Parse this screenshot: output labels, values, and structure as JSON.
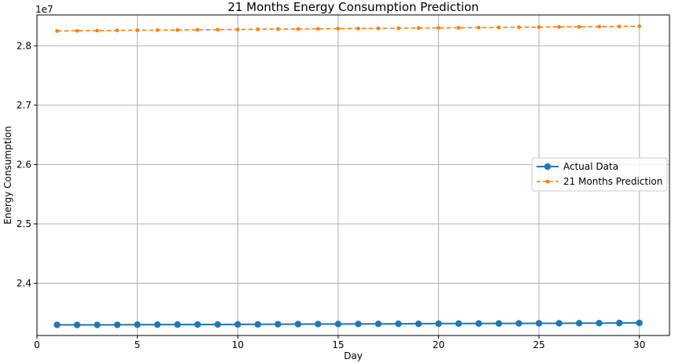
{
  "chart_data": {
    "type": "line",
    "title": "21 Months Energy Consumption Prediction",
    "xlabel": "Day",
    "ylabel": "Energy Consumption",
    "y_offset_label": "1e7",
    "y_scale": 10000000,
    "xlim": [
      0,
      31.5
    ],
    "ylim": [
      23120000,
      28520000
    ],
    "xticks": [
      0,
      5,
      10,
      15,
      20,
      25,
      30
    ],
    "yticks": [
      24000000,
      25000000,
      26000000,
      27000000,
      28000000
    ],
    "ytick_labels": [
      "2.4",
      "2.5",
      "2.6",
      "2.7",
      "2.8"
    ],
    "grid": true,
    "legend_position": "center-right",
    "x": [
      1,
      2,
      3,
      4,
      5,
      6,
      7,
      8,
      9,
      10,
      11,
      12,
      13,
      14,
      15,
      16,
      17,
      18,
      19,
      20,
      21,
      22,
      23,
      24,
      25,
      26,
      27,
      28,
      29,
      30
    ],
    "series": [
      {
        "name": "Actual Data",
        "color": "#1f77b4",
        "style": "solid-circle",
        "values": [
          23300000,
          23298000,
          23298000,
          23300000,
          23302000,
          23303000,
          23304000,
          23305000,
          23306000,
          23307000,
          23308000,
          23310000,
          23312000,
          23313000,
          23314000,
          23315000,
          23316000,
          23317000,
          23318000,
          23320000,
          23321000,
          23322000,
          23323000,
          23324000,
          23325000,
          23326000,
          23328000,
          23329000,
          23330000,
          23332000
        ]
      },
      {
        "name": "21 Months Prediction",
        "color": "#ff7f0e",
        "style": "dashed-point",
        "values": [
          28250000,
          28253000,
          28256000,
          28259000,
          28262000,
          28264000,
          28267000,
          28270000,
          28272000,
          28275000,
          28278000,
          28281000,
          28283000,
          28286000,
          28289000,
          28291000,
          28294000,
          28296000,
          28299000,
          28302000,
          28304000,
          28307000,
          28310000,
          28312000,
          28315000,
          28318000,
          28320000,
          28323000,
          28326000,
          28329000
        ]
      }
    ]
  }
}
